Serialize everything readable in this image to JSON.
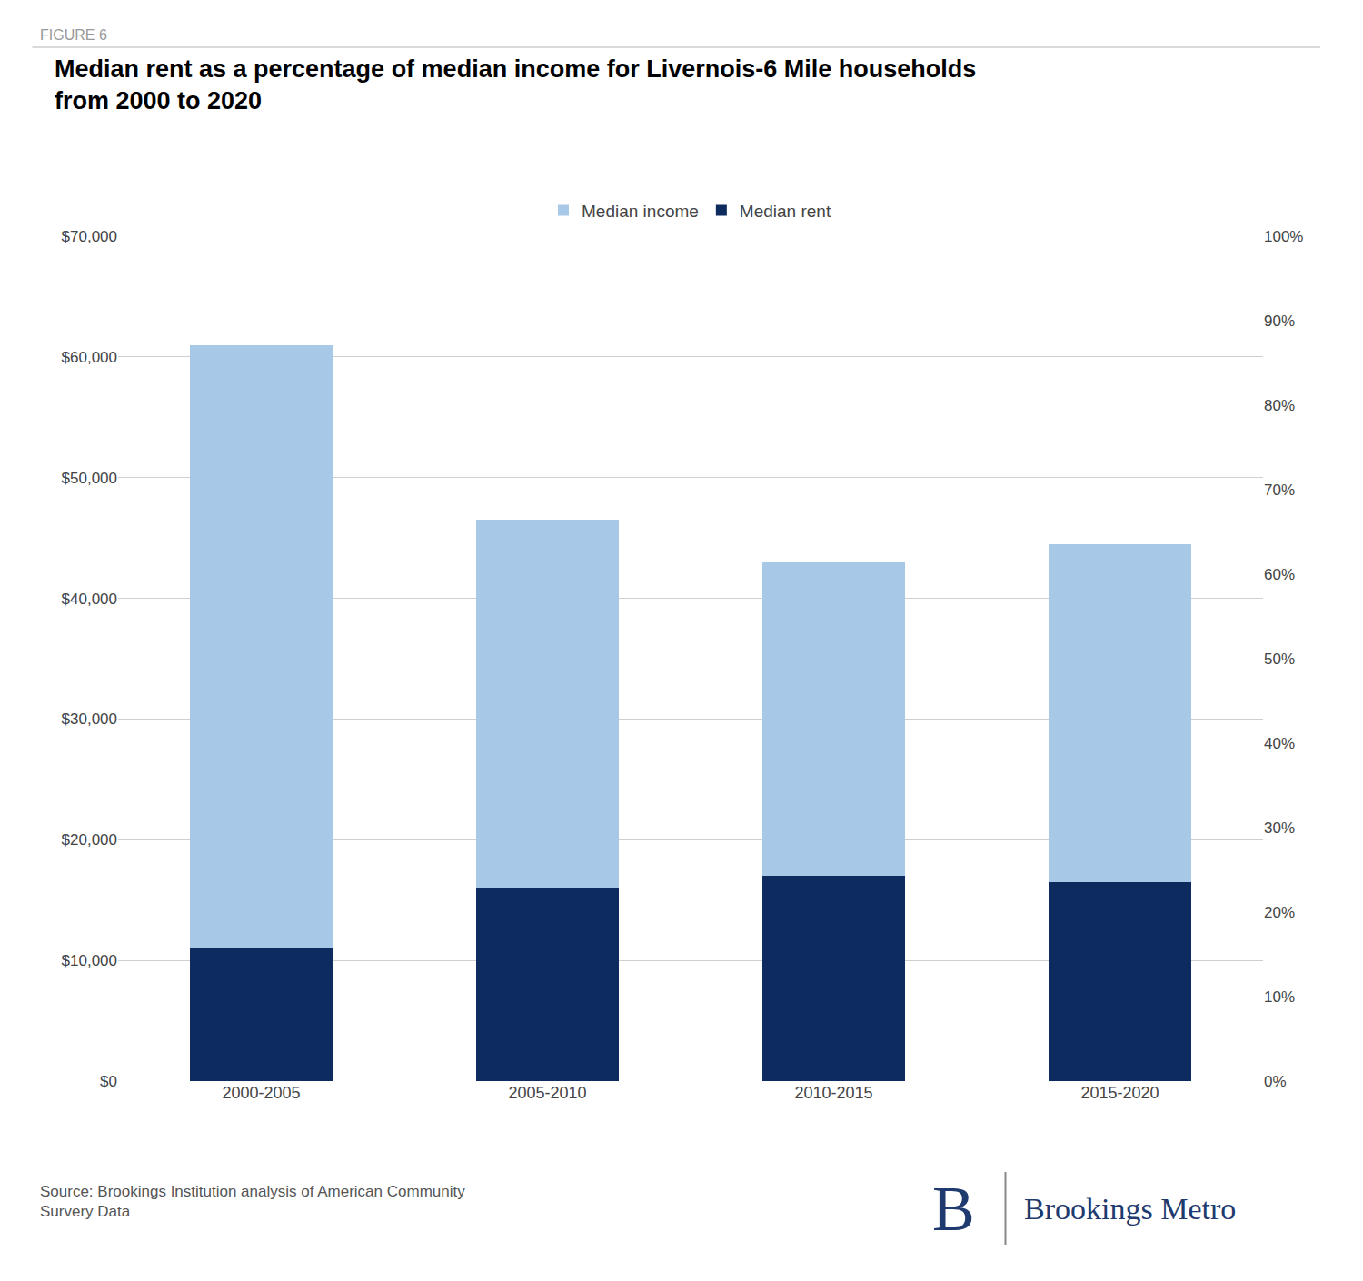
{
  "chart_data": {
    "type": "bar",
    "stacked": true,
    "title": "Median rent as a percentage of median income for Livernois-6 Mile households\nfrom 2000 to 2020",
    "categories": [
      "2000-2005",
      "2005-2010",
      "2010-2015",
      "2015-2020"
    ],
    "series": [
      {
        "name": "Median rent",
        "color": "#0d2b5e",
        "values": [
          11000,
          16000,
          17000,
          16500
        ]
      },
      {
        "name": "Median income",
        "color": "#a8c8e8",
        "values": [
          50000,
          30500,
          26000,
          28000
        ]
      }
    ],
    "ylim": [
      0,
      70000
    ],
    "yticks": [
      {
        "value": 0,
        "label": "$0"
      },
      {
        "value": 10000,
        "label": "$10,000"
      },
      {
        "value": 20000,
        "label": "$20,000"
      },
      {
        "value": 30000,
        "label": "$30,000"
      },
      {
        "value": 40000,
        "label": "$40,000"
      },
      {
        "value": 50000,
        "label": "$50,000"
      },
      {
        "value": 60000,
        "label": "$60,000"
      },
      {
        "value": 70000,
        "label": "$70,000"
      }
    ],
    "y2lim": [
      0,
      100
    ],
    "y2ticks": [
      {
        "value": 0,
        "label": "0%"
      },
      {
        "value": 10,
        "label": "10%"
      },
      {
        "value": 20,
        "label": "20%"
      },
      {
        "value": 30,
        "label": "30%"
      },
      {
        "value": 40,
        "label": "40%"
      },
      {
        "value": 50,
        "label": "50%"
      },
      {
        "value": 60,
        "label": "60%"
      },
      {
        "value": 70,
        "label": "70%"
      },
      {
        "value": 80,
        "label": "80%"
      },
      {
        "value": 90,
        "label": "90%"
      },
      {
        "value": 100,
        "label": "100%"
      }
    ],
    "grid": true,
    "legend": "top",
    "annotations": [
      "FIGURE 6",
      "Source: Brookings Institution analysis of American Community\nSurvery Data",
      "B",
      "Brookings Metro"
    ]
  }
}
